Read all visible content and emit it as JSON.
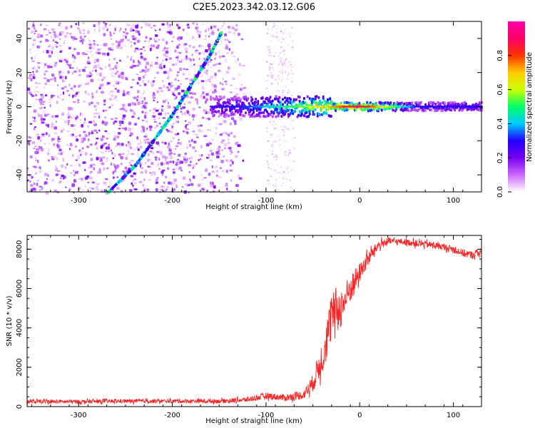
{
  "title": "C2E5.2023.342.03.12.G06",
  "chart_data": [
    {
      "type": "heatmap",
      "xlabel": "Height of straight line (km)",
      "ylabel": "Frequency (Hz)",
      "xlim": [
        -355,
        130
      ],
      "ylim": [
        -50,
        50
      ],
      "x_ticks": [
        "-300",
        "-200",
        "-100",
        "0",
        "100"
      ],
      "x_tick_values": [
        -300,
        -200,
        -100,
        0,
        100
      ],
      "y_ticks": [
        "-40",
        "-20",
        "0",
        "20",
        "40"
      ],
      "y_tick_values": [
        -40,
        -20,
        0,
        20,
        40
      ],
      "colorbar": {
        "label": "Normalized spectral amplitude",
        "range": [
          0,
          1
        ],
        "ticks": [
          "0.0",
          "0.2",
          "0.4",
          "0.6",
          "0.8"
        ],
        "tick_values": [
          0.0,
          0.2,
          0.4,
          0.6,
          0.8
        ],
        "colormap": [
          "#ffffff",
          "#cc66ff",
          "#7700ee",
          "#2200ff",
          "#00ccff",
          "#00ff66",
          "#ccff00",
          "#ffcc00",
          "#ff3300",
          "#ff0066",
          "#ff00aa"
        ]
      },
      "features": {
        "diagonal_track": {
          "points": [
            [
              -268,
              -50
            ],
            [
              -240,
              -35
            ],
            [
              -220,
              -20
            ],
            [
              -200,
              -5
            ],
            [
              -185,
              8
            ],
            [
              -160,
              30
            ],
            [
              -147,
              44
            ]
          ],
          "amplitude": 0.35
        },
        "horizontal_track": {
          "x_start": -160,
          "x_end": 130,
          "freq": 0,
          "amplitude_start": 0.25,
          "amplitude_peak": 0.9,
          "peak_x": 0,
          "amplitude_end": 0.3
        },
        "noise_region": {
          "x_start": -355,
          "x_end": -120,
          "amplitude": 0.12
        },
        "noise_band": {
          "x_start": -100,
          "x_end": -70,
          "amplitude": 0.05
        }
      },
      "grid": false
    },
    {
      "type": "line",
      "xlabel": "Height of straight line (km)",
      "ylabel": "SNR (10 * v/v)",
      "xlim": [
        -355,
        130
      ],
      "ylim": [
        0,
        8700
      ],
      "x_ticks": [
        "-300",
        "-200",
        "-100",
        "0",
        "100"
      ],
      "x_tick_values": [
        -300,
        -200,
        -100,
        0,
        100
      ],
      "y_ticks": [
        "0",
        "2000",
        "4000",
        "6000",
        "8000"
      ],
      "y_tick_values": [
        0,
        2000,
        4000,
        6000,
        8000
      ],
      "series": [
        {
          "color": "#ff2222",
          "x": [
            -355,
            -300,
            -250,
            -200,
            -150,
            -120,
            -100,
            -80,
            -60,
            -50,
            -40,
            -35,
            -30,
            -25,
            -20,
            -10,
            0,
            10,
            20,
            30,
            40,
            60,
            80,
            100,
            110,
            120,
            130
          ],
          "y": [
            250,
            250,
            280,
            280,
            280,
            350,
            550,
            450,
            600,
            1200,
            2500,
            3500,
            4500,
            5000,
            5000,
            6000,
            6800,
            7600,
            8200,
            8400,
            8400,
            8300,
            8200,
            8000,
            7800,
            7700,
            7900
          ],
          "spread": [
            200,
            200,
            200,
            200,
            220,
            250,
            350,
            350,
            450,
            900,
            1800,
            2200,
            2400,
            2200,
            2000,
            1500,
            1000,
            700,
            500,
            400,
            300,
            350,
            350,
            350,
            400,
            400,
            400
          ]
        }
      ],
      "grid": false
    }
  ]
}
